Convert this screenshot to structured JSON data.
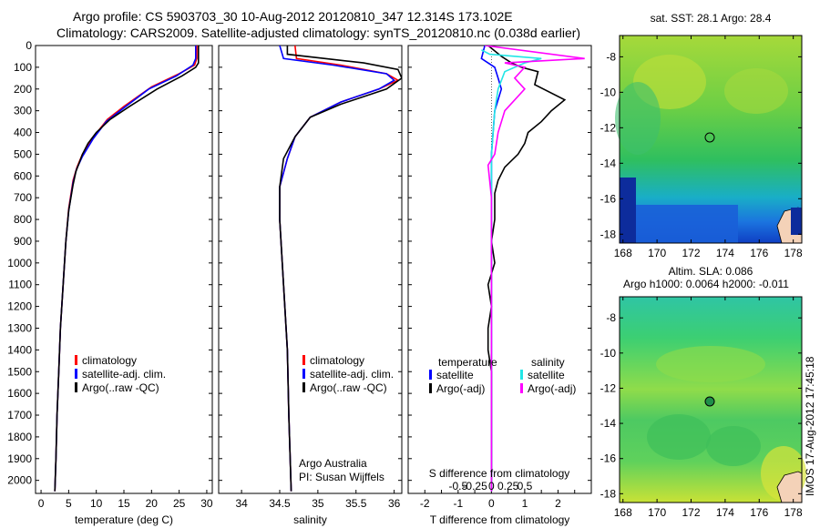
{
  "header": {
    "line1": "Argo profile: CS 5903703_30 10-Aug-2012 20120810_347 12.314S 173.102E",
    "line2": "Climatology: CARS2009. Satellite-adjusted climatology: synTS_20120810.nc (0.038d earlier)"
  },
  "side_stamp": "IMOS 17-Aug-2012 17:45:18",
  "colors": {
    "climatology": "#ff0000",
    "satellite": "#0000ff",
    "argo": "#000000",
    "sal_sat": "#22e6e6",
    "sal_argo": "#ff00ff"
  },
  "chart_data": [
    {
      "type": "line",
      "xlabel": "temperature (deg C)",
      "ylabel": "",
      "xlim": [
        -1,
        31
      ],
      "ylim": [
        2060,
        0
      ],
      "xticks": [
        0,
        5,
        10,
        15,
        20,
        25,
        30
      ],
      "yticks": [
        0,
        100,
        200,
        300,
        400,
        500,
        600,
        700,
        800,
        900,
        1000,
        1100,
        1200,
        1300,
        1400,
        1500,
        1600,
        1700,
        1800,
        1900,
        2000
      ],
      "legend": [
        "climatology",
        "satellite-adj. clim.",
        "Argo(..raw -QC)"
      ],
      "series": [
        {
          "name": "climatology",
          "color": "#ff0000",
          "points": [
            [
              28.2,
              0
            ],
            [
              28.2,
              60
            ],
            [
              27.8,
              90
            ],
            [
              25,
              130
            ],
            [
              20,
              190
            ],
            [
              15,
              280
            ],
            [
              12,
              340
            ],
            [
              9.5,
              420
            ],
            [
              7.5,
              500
            ],
            [
              6.5,
              560
            ],
            [
              5.8,
              620
            ],
            [
              5,
              750
            ],
            [
              4.5,
              900
            ],
            [
              4,
              1100
            ],
            [
              3.5,
              1300
            ],
            [
              3.2,
              1500
            ],
            [
              2.9,
              1700
            ],
            [
              2.7,
              1900
            ],
            [
              2.5,
              2050
            ]
          ]
        },
        {
          "name": "satellite-adj. clim.",
          "color": "#0000ff",
          "points": [
            [
              28,
              0
            ],
            [
              28,
              60
            ],
            [
              27.5,
              90
            ],
            [
              24.5,
              140
            ],
            [
              19.5,
              200
            ],
            [
              14.8,
              290
            ],
            [
              11.8,
              350
            ],
            [
              9.4,
              430
            ],
            [
              7.5,
              510
            ],
            [
              6.4,
              570
            ],
            [
              5.8,
              630
            ],
            [
              5,
              760
            ],
            [
              4.5,
              900
            ],
            [
              4,
              1100
            ],
            [
              3.5,
              1300
            ],
            [
              3.2,
              1500
            ],
            [
              2.9,
              1700
            ],
            [
              2.7,
              1900
            ],
            [
              2.5,
              2050
            ]
          ]
        },
        {
          "name": "Argo(..raw -QC)",
          "color": "#000000",
          "points": [
            [
              28.5,
              0
            ],
            [
              28.5,
              80
            ],
            [
              28,
              100
            ],
            [
              25.5,
              140
            ],
            [
              21,
              200
            ],
            [
              16,
              280
            ],
            [
              12.5,
              340
            ],
            [
              10,
              400
            ],
            [
              8.5,
              450
            ],
            [
              7.5,
              500
            ],
            [
              6.3,
              580
            ],
            [
              5.8,
              640
            ],
            [
              5,
              760
            ],
            [
              4.5,
              900
            ],
            [
              4,
              1100
            ],
            [
              3.5,
              1300
            ],
            [
              3.2,
              1500
            ],
            [
              2.9,
              1700
            ],
            [
              2.7,
              1900
            ],
            [
              2.5,
              2050
            ]
          ]
        }
      ]
    },
    {
      "type": "line",
      "xlabel": "salinity",
      "ylabel": "",
      "xlim": [
        33.7,
        36.1
      ],
      "ylim": [
        2060,
        0
      ],
      "xticks": [
        34,
        34.5,
        35,
        35.5,
        36
      ],
      "legend": [
        "climatology",
        "satellite-adj. clim.",
        "Argo(..raw -QC)"
      ],
      "annotation": [
        "Argo Australia",
        "PI: Susan Wijffels"
      ],
      "series": [
        {
          "name": "climatology",
          "color": "#ff0000",
          "points": [
            [
              34.7,
              0
            ],
            [
              34.72,
              60
            ],
            [
              35.3,
              90
            ],
            [
              35.9,
              130
            ],
            [
              36.05,
              160
            ],
            [
              35.8,
              200
            ],
            [
              35.3,
              260
            ],
            [
              34.9,
              330
            ],
            [
              34.7,
              420
            ],
            [
              34.6,
              520
            ],
            [
              34.5,
              650
            ],
            [
              34.5,
              800
            ],
            [
              34.55,
              1100
            ],
            [
              34.6,
              1400
            ],
            [
              34.62,
              1700
            ],
            [
              34.65,
              2050
            ]
          ]
        },
        {
          "name": "satellite-adj. clim.",
          "color": "#0000ff",
          "points": [
            [
              34.5,
              0
            ],
            [
              34.55,
              60
            ],
            [
              35.2,
              90
            ],
            [
              35.9,
              130
            ],
            [
              36,
              160
            ],
            [
              35.8,
              200
            ],
            [
              35.3,
              260
            ],
            [
              34.9,
              330
            ],
            [
              34.7,
              420
            ],
            [
              34.6,
              520
            ],
            [
              34.5,
              650
            ],
            [
              34.5,
              800
            ],
            [
              34.55,
              1100
            ],
            [
              34.6,
              1400
            ],
            [
              34.62,
              1700
            ],
            [
              34.65,
              2050
            ]
          ]
        },
        {
          "name": "Argo(..raw -QC)",
          "color": "#000000",
          "points": [
            [
              34.6,
              0
            ],
            [
              34.6,
              40
            ],
            [
              35.6,
              80
            ],
            [
              36.05,
              110
            ],
            [
              36.1,
              150
            ],
            [
              35.9,
              200
            ],
            [
              35.3,
              270
            ],
            [
              34.9,
              330
            ],
            [
              34.7,
              420
            ],
            [
              34.55,
              520
            ],
            [
              34.5,
              650
            ],
            [
              34.5,
              800
            ],
            [
              34.55,
              1100
            ],
            [
              34.6,
              1400
            ],
            [
              34.62,
              1700
            ],
            [
              34.65,
              2050
            ]
          ]
        }
      ]
    },
    {
      "type": "line",
      "xlabel": "T difference from climatology",
      "secondary_xlabel": "S difference from climatology",
      "xlim": [
        -2.5,
        3
      ],
      "ylim": [
        2060,
        0
      ],
      "xticks": [
        -2,
        -1.5,
        -1,
        -0.5,
        0,
        0.5,
        1,
        1.5,
        2,
        2.5
      ],
      "xticklabels": [
        "-2",
        "",
        "-1",
        "",
        "0",
        "",
        "1",
        "",
        "2",
        ""
      ],
      "sxticks": [
        -1,
        -0.5,
        0,
        0.5,
        1
      ],
      "sxticklabels": [
        "-0.5",
        "-0.25",
        "0",
        "0.25",
        "0.5"
      ],
      "legend_titles": [
        "temperature",
        "salinity"
      ],
      "legend": [
        "satellite",
        "Argo(-adj)",
        "satellite",
        "Argo(-adj)"
      ],
      "series": [
        {
          "name": "temperature satellite",
          "color": "#0000ff",
          "points": [
            [
              -0.2,
              0
            ],
            [
              -0.3,
              60
            ],
            [
              0.1,
              100
            ],
            [
              0.2,
              150
            ],
            [
              0.3,
              200
            ],
            [
              0.1,
              300
            ],
            [
              0,
              500
            ],
            [
              0,
              700
            ],
            [
              0,
              1000
            ],
            [
              0,
              1500
            ],
            [
              0,
              2050
            ]
          ]
        },
        {
          "name": "temperature Argo(-adj)",
          "color": "#000000",
          "points": [
            [
              -0.1,
              0
            ],
            [
              0.3,
              50
            ],
            [
              0.6,
              80
            ],
            [
              0.9,
              100
            ],
            [
              1.4,
              120
            ],
            [
              1.3,
              180
            ],
            [
              2.2,
              250
            ],
            [
              1.8,
              300
            ],
            [
              1.5,
              350
            ],
            [
              1.1,
              400
            ],
            [
              1,
              450
            ],
            [
              0.8,
              500
            ],
            [
              0.4,
              560
            ],
            [
              0.2,
              620
            ],
            [
              0.1,
              680
            ],
            [
              0.1,
              800
            ],
            [
              0,
              900
            ],
            [
              0.1,
              1000
            ],
            [
              -0.1,
              1100
            ],
            [
              0,
              1200
            ],
            [
              -0.1,
              1300
            ],
            [
              -0.1,
              1400
            ],
            [
              0,
              1500
            ],
            [
              0,
              1700
            ],
            [
              0,
              2050
            ]
          ]
        },
        {
          "name": "salinity satellite",
          "color": "#22e6e6",
          "points": [
            [
              -0.3,
              20
            ],
            [
              -0.05,
              40
            ],
            [
              1.5,
              60
            ],
            [
              1,
              80
            ],
            [
              0.4,
              120
            ],
            [
              0.2,
              200
            ],
            [
              0.1,
              300
            ],
            [
              0,
              500
            ],
            [
              0,
              1000
            ],
            [
              0,
              2050
            ]
          ]
        },
        {
          "name": "salinity Argo(-adj)",
          "color": "#ff00ff",
          "points": [
            [
              -0.2,
              0
            ],
            [
              2.8,
              60
            ],
            [
              0.4,
              80
            ],
            [
              1,
              100
            ],
            [
              0.7,
              150
            ],
            [
              1,
              200
            ],
            [
              0.4,
              300
            ],
            [
              0.2,
              400
            ],
            [
              0.1,
              500
            ],
            [
              -0.1,
              550
            ],
            [
              0,
              700
            ],
            [
              0,
              1000
            ],
            [
              0,
              2050
            ]
          ]
        }
      ]
    },
    {
      "type": "heatmap",
      "title": "sat. SST: 28.1  Argo: 28.4",
      "xlim": [
        167.8,
        178.5
      ],
      "ylim": [
        -18.5,
        -6.8
      ],
      "xticks": [
        168,
        170,
        172,
        174,
        176,
        178
      ],
      "yticks": [
        -8,
        -10,
        -12,
        -14,
        -16,
        -18
      ],
      "marker": [
        173.1,
        -12.3
      ]
    },
    {
      "type": "heatmap",
      "title": "Altim. SLA: 0.086",
      "subtitle": "Argo h1000: 0.0064 h2000: -0.011",
      "xlim": [
        167.8,
        178.5
      ],
      "ylim": [
        -18.5,
        -6.8
      ],
      "xticks": [
        168,
        170,
        172,
        174,
        176,
        178
      ],
      "yticks": [
        -8,
        -10,
        -12,
        -14,
        -16,
        -18
      ],
      "marker": [
        173.1,
        -12.3
      ]
    }
  ]
}
